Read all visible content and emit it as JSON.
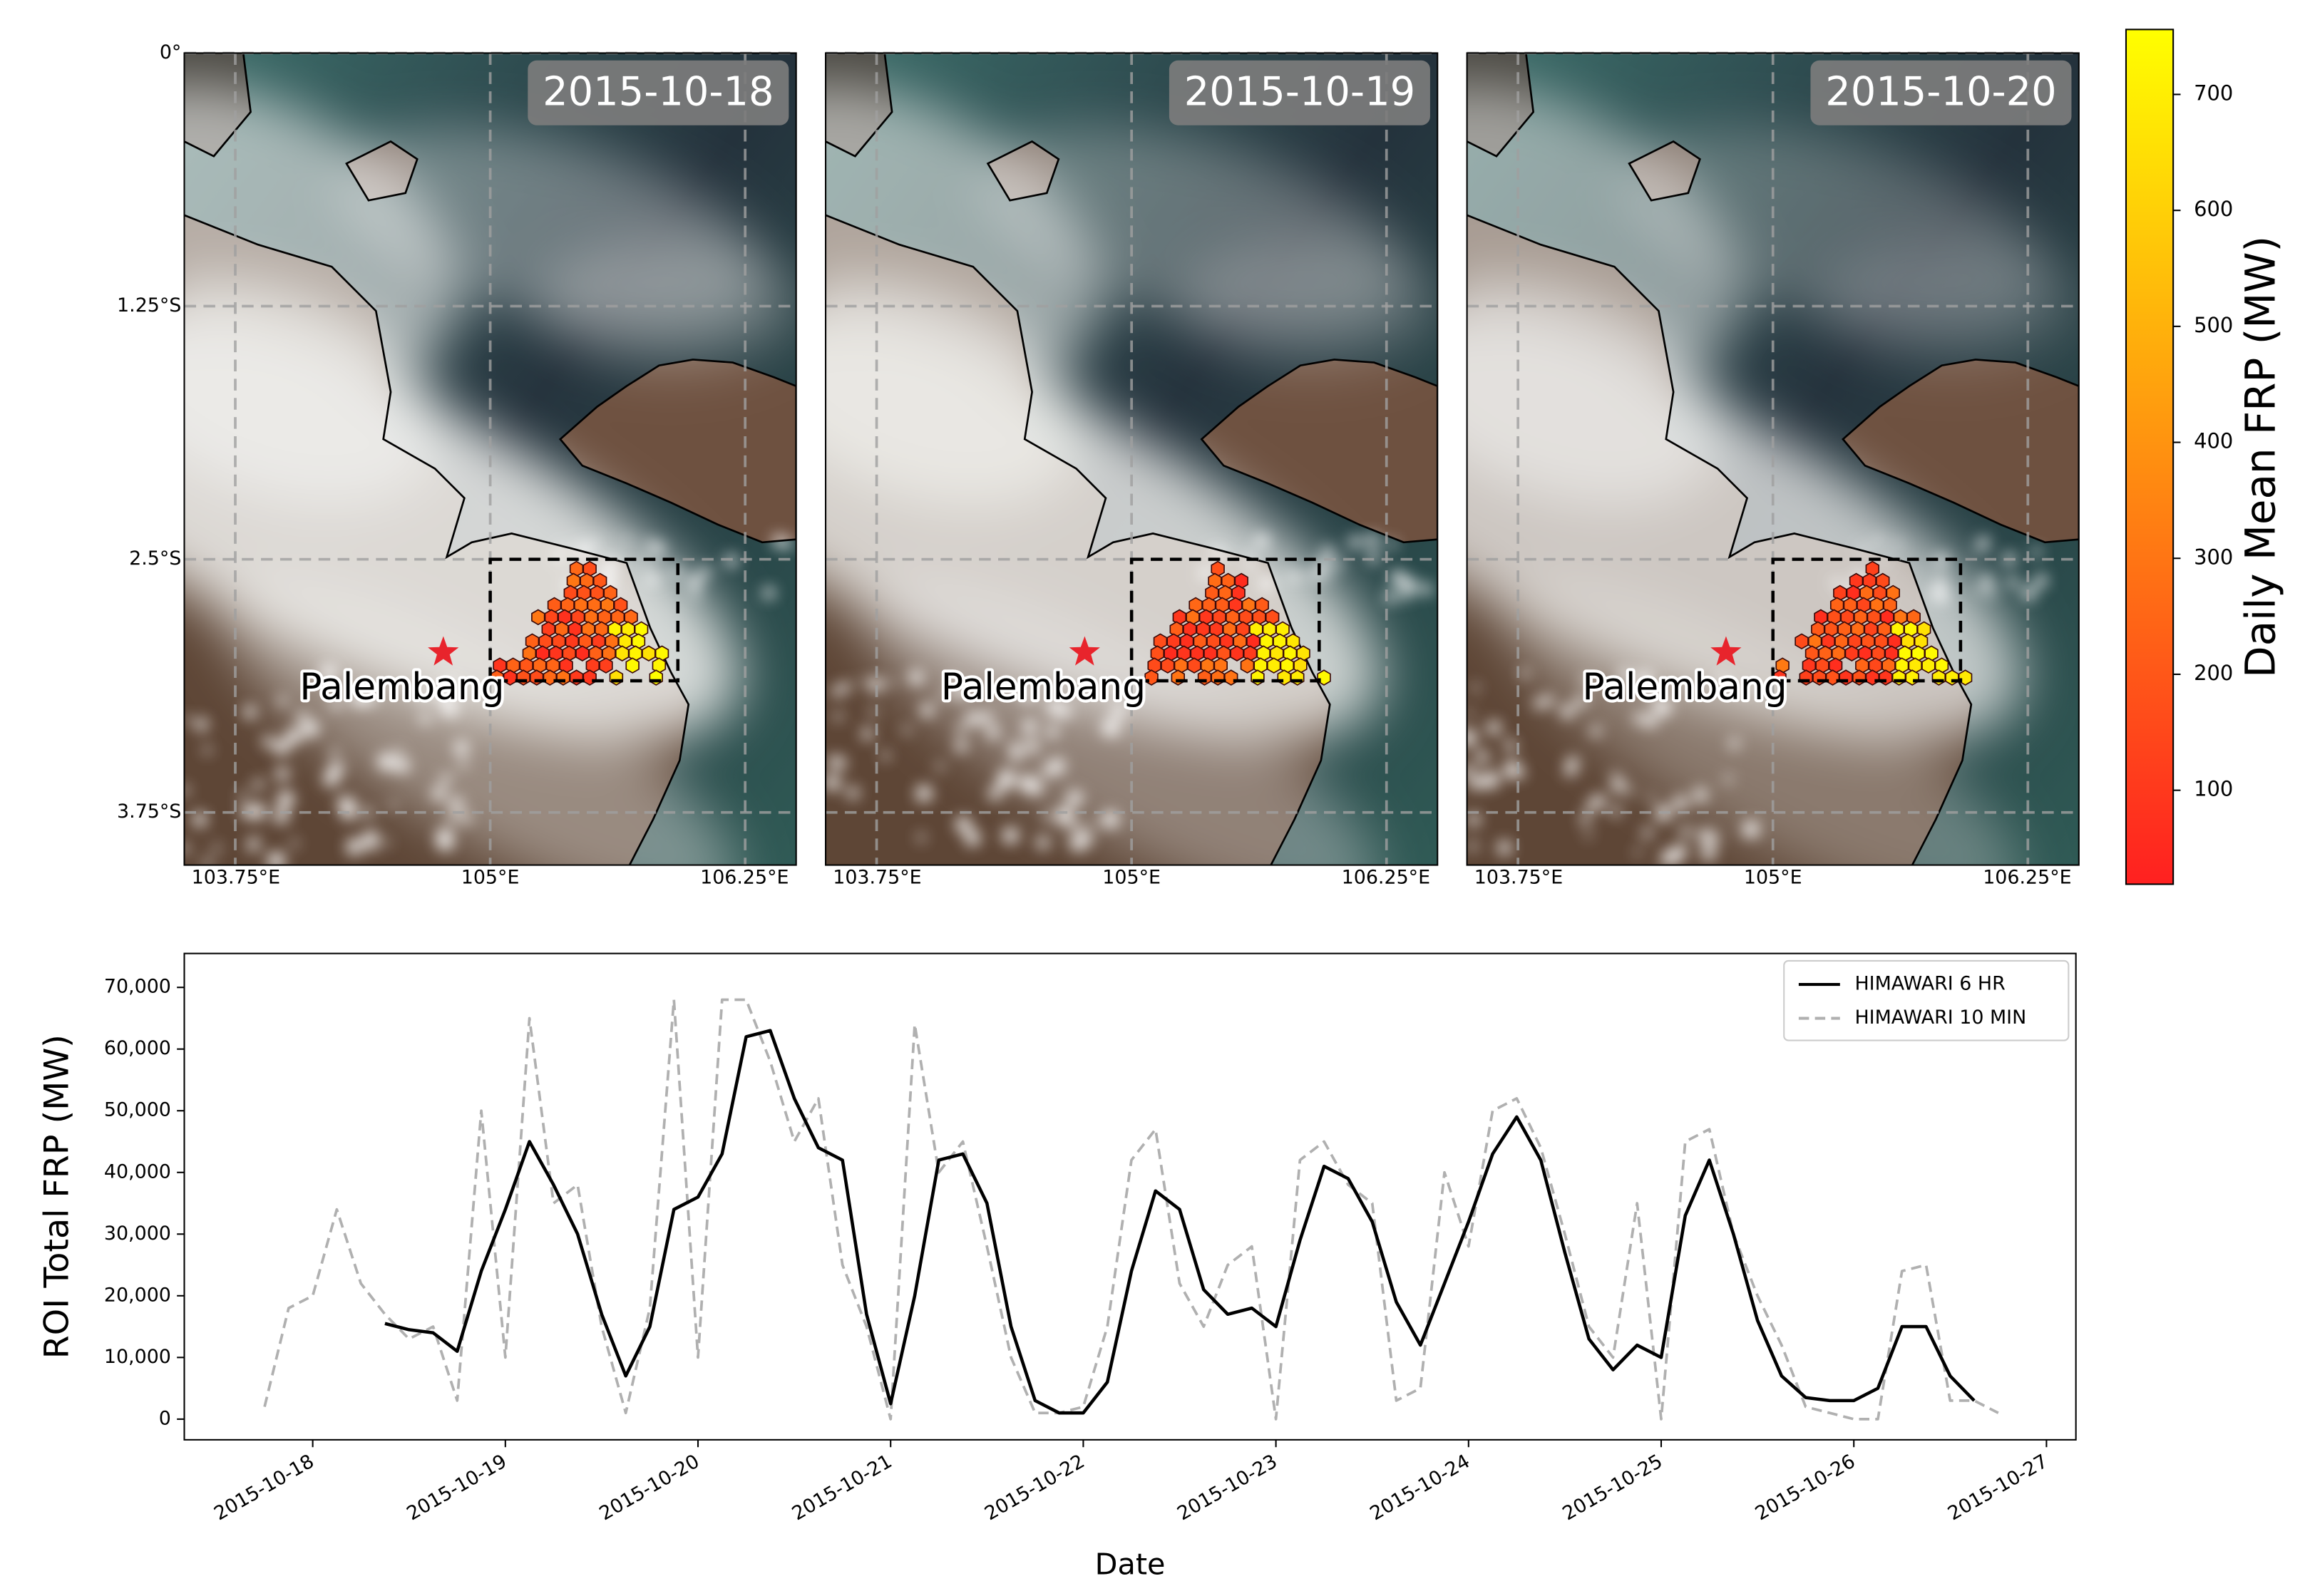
{
  "chart_data": [
    {
      "type": "map",
      "panels": [
        {
          "title": "2015-10-18"
        },
        {
          "title": "2015-10-19"
        },
        {
          "title": "2015-10-20"
        }
      ],
      "xlim": [
        103.5,
        106.5
      ],
      "ylim": [
        -4.01,
        0
      ],
      "xticks": [
        {
          "value": 103.75,
          "label": "103.75°E"
        },
        {
          "value": 105,
          "label": "105°E"
        },
        {
          "value": 106.25,
          "label": "106.25°E"
        }
      ],
      "yticks": [
        {
          "value": 0,
          "label": "0°"
        },
        {
          "value": -1.25,
          "label": "1.25°S"
        },
        {
          "value": -2.5,
          "label": "2.5°S"
        },
        {
          "value": -3.75,
          "label": "3.75°S"
        }
      ],
      "grid": true,
      "place": {
        "name": "Palembang",
        "lon": 104.77,
        "lat": -2.96,
        "color": "#e8242c"
      },
      "roi": {
        "lon": [
          105,
          105.92
        ],
        "lat": [
          -3.1,
          -2.5
        ]
      },
      "colorbar": {
        "label": "Daily Mean FRP (MW)",
        "lim": [
          19,
          756
        ],
        "ticks": [
          100,
          200,
          300,
          400,
          500,
          600,
          700
        ],
        "colors": [
          "#ff2020",
          "#ffff00"
        ]
      }
    },
    {
      "type": "line",
      "xlabel": "Date",
      "ylabel": "ROI Total FRP (MW)",
      "xlim": [
        "2015-10-17 08:00",
        "2015-10-27 03:40"
      ],
      "xticks": [
        "2015-10-18",
        "2015-10-19",
        "2015-10-20",
        "2015-10-21",
        "2015-10-22",
        "2015-10-23",
        "2015-10-24",
        "2015-10-25",
        "2015-10-26",
        "2015-10-27"
      ],
      "ylim": [
        -3350,
        75500
      ],
      "yticks": [
        0,
        {
          "value": 10000,
          "label": "10,000"
        },
        {
          "value": 20000,
          "label": "20,000"
        },
        {
          "value": 30000,
          "label": "30,000"
        },
        {
          "value": 40000,
          "label": "40,000"
        },
        {
          "value": 50000,
          "label": "50,000"
        },
        {
          "value": 60000,
          "label": "60,000"
        },
        {
          "value": 70000,
          "label": "70,000"
        }
      ],
      "legend": "upper right",
      "series": [
        {
          "name": "HIMAWARI 6 HR",
          "color": "#000000",
          "style": "solid",
          "x": [
            "2015-10-18 09:00",
            "2015-10-18 12:00",
            "2015-10-18 15:00",
            "2015-10-18 18:00",
            "2015-10-18 21:00",
            "2015-10-19 00:00",
            "2015-10-19 03:00",
            "2015-10-19 06:00",
            "2015-10-19 09:00",
            "2015-10-19 12:00",
            "2015-10-19 15:00",
            "2015-10-19 18:00",
            "2015-10-19 21:00",
            "2015-10-20 00:00",
            "2015-10-20 03:00",
            "2015-10-20 06:00",
            "2015-10-20 09:00",
            "2015-10-20 12:00",
            "2015-10-20 15:00",
            "2015-10-20 18:00",
            "2015-10-20 21:00",
            "2015-10-21 00:00",
            "2015-10-21 03:00",
            "2015-10-21 06:00",
            "2015-10-21 09:00",
            "2015-10-21 12:00",
            "2015-10-21 15:00",
            "2015-10-21 18:00",
            "2015-10-21 21:00",
            "2015-10-22 00:00",
            "2015-10-22 03:00",
            "2015-10-22 06:00",
            "2015-10-22 09:00",
            "2015-10-22 12:00",
            "2015-10-22 15:00",
            "2015-10-22 18:00",
            "2015-10-22 21:00",
            "2015-10-23 00:00",
            "2015-10-23 03:00",
            "2015-10-23 06:00",
            "2015-10-23 09:00",
            "2015-10-23 12:00",
            "2015-10-23 15:00",
            "2015-10-23 18:00",
            "2015-10-23 21:00",
            "2015-10-24 00:00",
            "2015-10-24 03:00",
            "2015-10-24 06:00",
            "2015-10-24 09:00",
            "2015-10-24 12:00",
            "2015-10-24 15:00",
            "2015-10-24 18:00",
            "2015-10-24 21:00",
            "2015-10-25 00:00",
            "2015-10-25 03:00",
            "2015-10-25 06:00",
            "2015-10-25 09:00",
            "2015-10-25 12:00",
            "2015-10-25 15:00",
            "2015-10-25 18:00",
            "2015-10-25 21:00",
            "2015-10-26 00:00",
            "2015-10-26 03:00",
            "2015-10-26 06:00",
            "2015-10-26 09:00",
            "2015-10-26 12:00",
            "2015-10-26 15:00"
          ],
          "values": [
            15500,
            14500,
            14000,
            11000,
            24000,
            34000,
            45000,
            38000,
            30000,
            17000,
            7000,
            15000,
            34000,
            36000,
            43000,
            62000,
            63000,
            52000,
            44000,
            42000,
            17000,
            2500,
            20000,
            42000,
            43000,
            35000,
            15000,
            3000,
            1000,
            1000,
            6000,
            24000,
            37000,
            34000,
            21000,
            17000,
            18000,
            15000,
            29000,
            41000,
            39000,
            32000,
            19000,
            12000,
            22000,
            32000,
            43000,
            49000,
            42000,
            27000,
            13000,
            8000,
            12000,
            10000,
            33000,
            42000,
            30000,
            16000,
            7000,
            3500,
            3000,
            3000,
            5000,
            15000,
            15000,
            7000,
            3000
          ]
        },
        {
          "name": "HIMAWARI 10 MIN",
          "color": "#b0b0b0",
          "style": "dashed",
          "x": [
            "2015-10-17 18:00",
            "2015-10-17 21:00",
            "2015-10-18 00:00",
            "2015-10-18 03:00",
            "2015-10-18 06:00",
            "2015-10-18 09:00",
            "2015-10-18 12:00",
            "2015-10-18 15:00",
            "2015-10-18 18:00",
            "2015-10-18 21:00",
            "2015-10-19 00:00",
            "2015-10-19 03:00",
            "2015-10-19 06:00",
            "2015-10-19 09:00",
            "2015-10-19 12:00",
            "2015-10-19 15:00",
            "2015-10-19 18:00",
            "2015-10-19 21:00",
            "2015-10-20 00:00",
            "2015-10-20 03:00",
            "2015-10-20 06:00",
            "2015-10-20 09:00",
            "2015-10-20 12:00",
            "2015-10-20 15:00",
            "2015-10-20 18:00",
            "2015-10-20 21:00",
            "2015-10-21 00:00",
            "2015-10-21 03:00",
            "2015-10-21 06:00",
            "2015-10-21 09:00",
            "2015-10-21 12:00",
            "2015-10-21 15:00",
            "2015-10-21 18:00",
            "2015-10-21 21:00",
            "2015-10-22 00:00",
            "2015-10-22 03:00",
            "2015-10-22 06:00",
            "2015-10-22 09:00",
            "2015-10-22 12:00",
            "2015-10-22 15:00",
            "2015-10-22 18:00",
            "2015-10-22 21:00",
            "2015-10-23 00:00",
            "2015-10-23 03:00",
            "2015-10-23 06:00",
            "2015-10-23 09:00",
            "2015-10-23 12:00",
            "2015-10-23 15:00",
            "2015-10-23 18:00",
            "2015-10-23 21:00",
            "2015-10-24 00:00",
            "2015-10-24 03:00",
            "2015-10-24 06:00",
            "2015-10-24 09:00",
            "2015-10-24 12:00",
            "2015-10-24 15:00",
            "2015-10-24 18:00",
            "2015-10-24 21:00",
            "2015-10-25 00:00",
            "2015-10-25 03:00",
            "2015-10-25 06:00",
            "2015-10-25 09:00",
            "2015-10-25 12:00",
            "2015-10-25 15:00",
            "2015-10-25 18:00",
            "2015-10-25 21:00",
            "2015-10-26 00:00",
            "2015-10-26 03:00",
            "2015-10-26 06:00",
            "2015-10-26 09:00",
            "2015-10-26 12:00",
            "2015-10-26 15:00",
            "2015-10-26 18:00"
          ],
          "values": [
            2000,
            18000,
            20000,
            34000,
            22000,
            17000,
            13000,
            15000,
            3000,
            50000,
            10000,
            65000,
            35000,
            38000,
            15000,
            1000,
            18000,
            68000,
            10000,
            68000,
            68000,
            58000,
            45000,
            52000,
            25000,
            15000,
            0,
            64000,
            40000,
            45000,
            28000,
            10000,
            1000,
            1000,
            2000,
            15000,
            42000,
            47000,
            22000,
            15000,
            25000,
            28000,
            0,
            42000,
            45000,
            38000,
            35000,
            3000,
            5000,
            40000,
            28000,
            50000,
            52000,
            44000,
            30000,
            15000,
            10000,
            35000,
            0,
            45000,
            47000,
            30000,
            20000,
            12000,
            2000,
            1000,
            0,
            0,
            24000,
            25000,
            3000,
            3000,
            1000
          ]
        }
      ]
    }
  ]
}
